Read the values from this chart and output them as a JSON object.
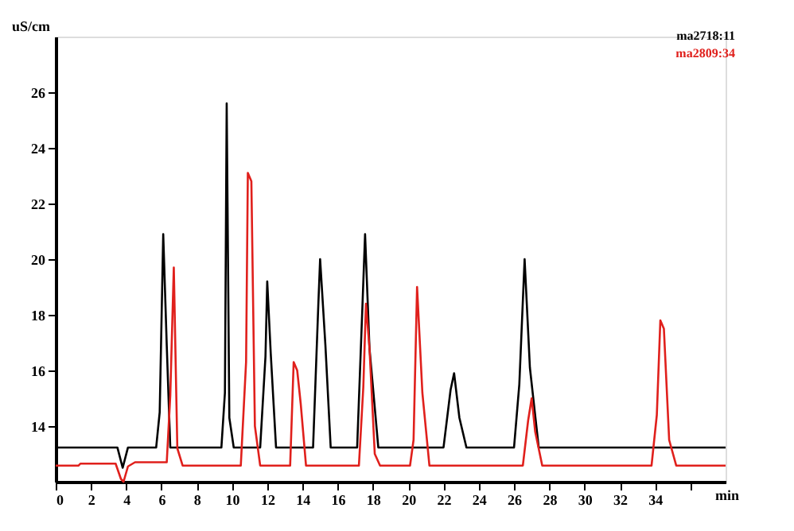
{
  "chart_data": {
    "type": "line",
    "xlabel": "min",
    "ylabel": "uS/cm",
    "xlim": [
      0,
      38
    ],
    "xticks": [
      0,
      2,
      4,
      6,
      8,
      10,
      12,
      14,
      16,
      18,
      20,
      22,
      24,
      26,
      28,
      30,
      32,
      34,
      {
        "value": 36,
        "label": null
      }
    ],
    "ylim": [
      12,
      28
    ],
    "yticks": [
      14,
      16,
      18,
      20,
      22,
      24,
      26
    ],
    "grid": false,
    "legend": "top right",
    "marker": "none",
    "line_style": "solid",
    "series": [
      {
        "name": "ma2718:11",
        "color": "#000000",
        "x": [
          0,
          3.5,
          3.8,
          4.1,
          5.7,
          5.9,
          6.1,
          6.3,
          6.5,
          9.4,
          9.6,
          9.7,
          9.85,
          10.1,
          11.6,
          11.9,
          12.0,
          12.2,
          12.5,
          14.6,
          14.9,
          15.0,
          15.3,
          15.6,
          17.1,
          17.4,
          17.55,
          17.8,
          18.3,
          22.0,
          22.4,
          22.6,
          22.9,
          23.3,
          26.0,
          26.3,
          26.6,
          26.9,
          27.4,
          38
        ],
        "values": [
          13.23,
          13.23,
          12.5,
          13.23,
          13.23,
          14.5,
          20.9,
          16.9,
          13.23,
          13.23,
          15.2,
          25.6,
          14.3,
          13.23,
          13.23,
          16.5,
          19.2,
          16.6,
          13.23,
          13.23,
          18.4,
          20.0,
          16.9,
          13.23,
          13.23,
          18.3,
          20.9,
          16.8,
          13.23,
          13.23,
          15.3,
          15.9,
          14.3,
          13.23,
          13.23,
          15.5,
          20.0,
          16.1,
          13.23,
          13.23
        ]
      },
      {
        "name": "ma2809:34",
        "color": "#e0201c",
        "x": [
          0,
          1.3,
          1.4,
          3.4,
          3.7,
          3.85,
          4.1,
          4.5,
          6.3,
          6.5,
          6.7,
          6.9,
          7.2,
          10.5,
          10.8,
          10.9,
          11.1,
          11.3,
          11.6,
          13.3,
          13.5,
          13.7,
          13.9,
          14.2,
          17.2,
          17.45,
          17.6,
          17.8,
          18.1,
          18.4,
          20.1,
          20.3,
          20.5,
          20.8,
          21.2,
          26.5,
          26.8,
          27.0,
          27.2,
          27.6,
          33.8,
          34.1,
          34.3,
          34.5,
          34.8,
          35.2,
          38
        ],
        "values": [
          12.58,
          12.58,
          12.65,
          12.65,
          12.1,
          12.0,
          12.55,
          12.7,
          12.7,
          15.1,
          19.7,
          13.2,
          12.58,
          12.58,
          16.3,
          23.1,
          22.8,
          14.0,
          12.58,
          12.58,
          16.3,
          16.0,
          14.8,
          12.58,
          12.58,
          15.4,
          18.4,
          16.8,
          13.0,
          12.58,
          12.58,
          13.5,
          19.0,
          15.2,
          12.58,
          12.58,
          14.2,
          15.0,
          13.8,
          12.58,
          12.58,
          14.4,
          17.8,
          17.5,
          13.5,
          12.58,
          12.58
        ]
      }
    ]
  }
}
